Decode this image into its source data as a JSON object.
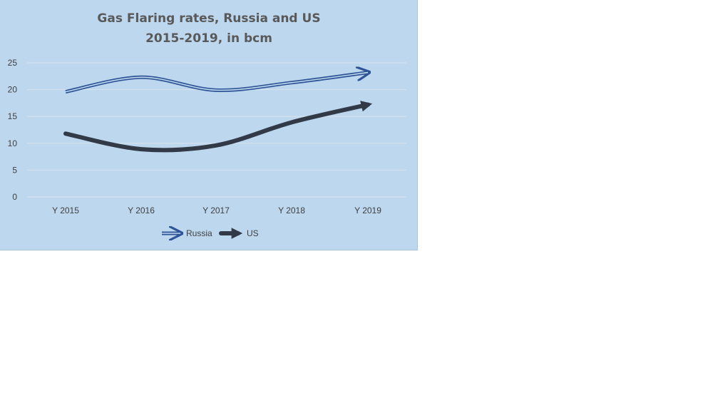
{
  "chart_data": {
    "type": "line",
    "title": "Gas Flaring rates, Russia and US",
    "subtitle": "2015-2019, in bcm",
    "categories": [
      "Y 2015",
      "Y 2016",
      "Y 2017",
      "Y 2018",
      "Y 2019"
    ],
    "series": [
      {
        "name": "Russia",
        "values": [
          19.6,
          22.3,
          19.9,
          21.3,
          23.2
        ],
        "color": "#2f5597",
        "style": "double-line-arrow"
      },
      {
        "name": "US",
        "values": [
          11.8,
          8.9,
          9.6,
          13.9,
          17.2
        ],
        "color": "#323a47",
        "style": "thick-line-arrow"
      }
    ],
    "ylim": [
      0,
      25
    ],
    "yticks": [
      0,
      5,
      10,
      15,
      20,
      25
    ],
    "grid": true,
    "legend_position": "bottom",
    "background": "#bdd7ee",
    "gridline_color": "#d9e3ee"
  }
}
